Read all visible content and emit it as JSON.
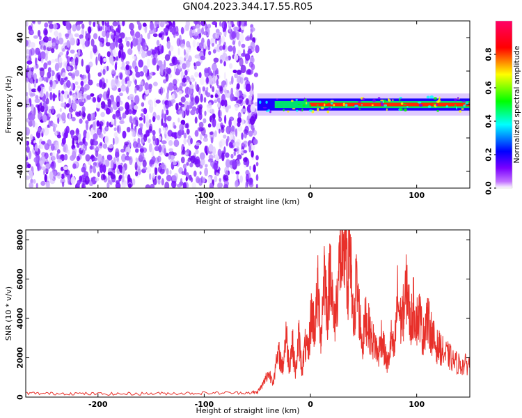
{
  "title": "GN04.2023.344.17.55.R05",
  "chart_data": [
    {
      "type": "heatmap",
      "xlabel": "Height of straight line (km)",
      "ylabel": "Frequency (Hz)",
      "xlim": [
        -268,
        150
      ],
      "ylim": [
        -50,
        50
      ],
      "x_ticks": [
        -200,
        -100,
        0,
        100
      ],
      "x_tick_labels": [
        "-200",
        "-100",
        "0",
        "100"
      ],
      "y_ticks": [
        -40,
        -20,
        0,
        20,
        40
      ],
      "y_tick_labels": [
        "-40",
        "-20",
        "0",
        "20",
        "40"
      ],
      "noise_region_x": [
        -268,
        -50
      ],
      "signal_track": {
        "x_start": -50,
        "x_end": 150,
        "frequency_center": 0,
        "frequency_halfwidth": 3
      },
      "colorbar": {
        "label": "Normalized spectral amplitude",
        "range": [
          0.0,
          1.0
        ],
        "ticks": [
          0.0,
          0.2,
          0.4,
          0.6,
          0.8
        ],
        "tick_labels": [
          "0.0",
          "0.2",
          "0.4",
          "0.6",
          "0.8"
        ],
        "colors": [
          "#ffffff",
          "#9b00ff",
          "#0000ff",
          "#00ffff",
          "#00ff00",
          "#ffff00",
          "#ff0000",
          "#ff0066"
        ]
      },
      "grid": false
    },
    {
      "type": "line",
      "xlabel": "Height of straight line (km)",
      "ylabel": "SNR (10 * v/v)",
      "xlim": [
        -268,
        150
      ],
      "ylim": [
        0,
        8500
      ],
      "x_ticks": [
        -200,
        -100,
        0,
        100
      ],
      "x_tick_labels": [
        "-200",
        "-100",
        "0",
        "100"
      ],
      "y_ticks": [
        0,
        2000,
        4000,
        6000,
        8000
      ],
      "y_tick_labels": [
        "0",
        "2000",
        "4000",
        "6000",
        "8000"
      ],
      "line_color": "#e8302a",
      "x": [
        -268,
        -250,
        -230,
        -210,
        -190,
        -170,
        -150,
        -130,
        -110,
        -90,
        -70,
        -55,
        -50,
        -45,
        -40,
        -35,
        -30,
        -26,
        -23,
        -20,
        -17,
        -14,
        -11,
        -8,
        -5,
        -2,
        1,
        4,
        7,
        10,
        13,
        16,
        19,
        22,
        25,
        28,
        31,
        33,
        35,
        37,
        39,
        41,
        43,
        46,
        49,
        52,
        55,
        58,
        61,
        64,
        67,
        70,
        73,
        76,
        79,
        82,
        85,
        88,
        91,
        94,
        97,
        100,
        103,
        106,
        109,
        112,
        115,
        118,
        122,
        126,
        130,
        135,
        140,
        145,
        150
      ],
      "values": [
        200,
        180,
        190,
        170,
        160,
        170,
        180,
        190,
        200,
        210,
        220,
        230,
        250,
        600,
        1200,
        900,
        2200,
        1500,
        3300,
        1600,
        2800,
        1200,
        3100,
        1400,
        2600,
        2200,
        4400,
        3500,
        5400,
        3100,
        6600,
        4200,
        7000,
        3600,
        5000,
        7300,
        6200,
        8400,
        5200,
        8700,
        4700,
        3400,
        5900,
        4300,
        2600,
        4100,
        3500,
        2900,
        2700,
        2100,
        3200,
        2200,
        1600,
        3000,
        2200,
        5100,
        3800,
        4400,
        5800,
        3600,
        4600,
        3900,
        4200,
        2900,
        4100,
        3600,
        3100,
        2600,
        2500,
        2200,
        2100,
        1800,
        1700,
        1600,
        1800
      ]
    }
  ]
}
